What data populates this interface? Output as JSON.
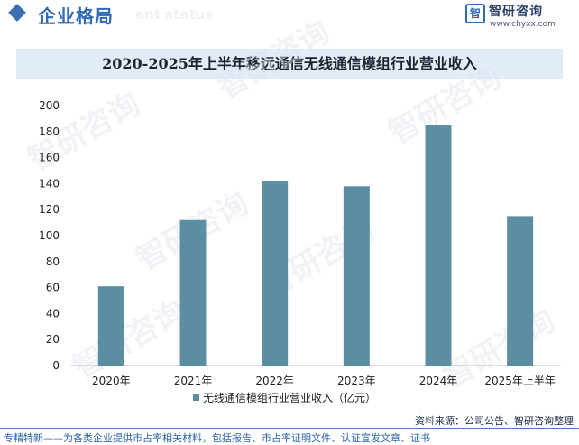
{
  "header": {
    "section_title": "企业格局",
    "ghost_text": "ent status",
    "logo_mark": "智",
    "logo_name": "智研咨询",
    "logo_url": "www.chyxx.com"
  },
  "watermark_text": "智研咨询",
  "chart_data": {
    "type": "bar",
    "title": "2020-2025年上半年移远通信无线通信模组行业营业收入",
    "categories": [
      "2020年",
      "2021年",
      "2022年",
      "2023年",
      "2024年",
      "2025年上半年"
    ],
    "series": [
      {
        "name": "无线通信模组行业营业收入（亿元）",
        "values": [
          61,
          112,
          142,
          138,
          185,
          115
        ]
      }
    ],
    "ylim": [
      0,
      200
    ],
    "yticks": [
      0,
      20,
      40,
      60,
      80,
      100,
      120,
      140,
      160,
      180,
      200
    ],
    "grid": false,
    "legend_position": "bottom",
    "bar_color": "#5b8ea2"
  },
  "footer": {
    "source": "资料来源：公司公告、智研咨询整理",
    "note": "专精特新——为各类企业提供市占率相关材料，包括报告、市占率证明文件、认证宣发文章、证书"
  }
}
